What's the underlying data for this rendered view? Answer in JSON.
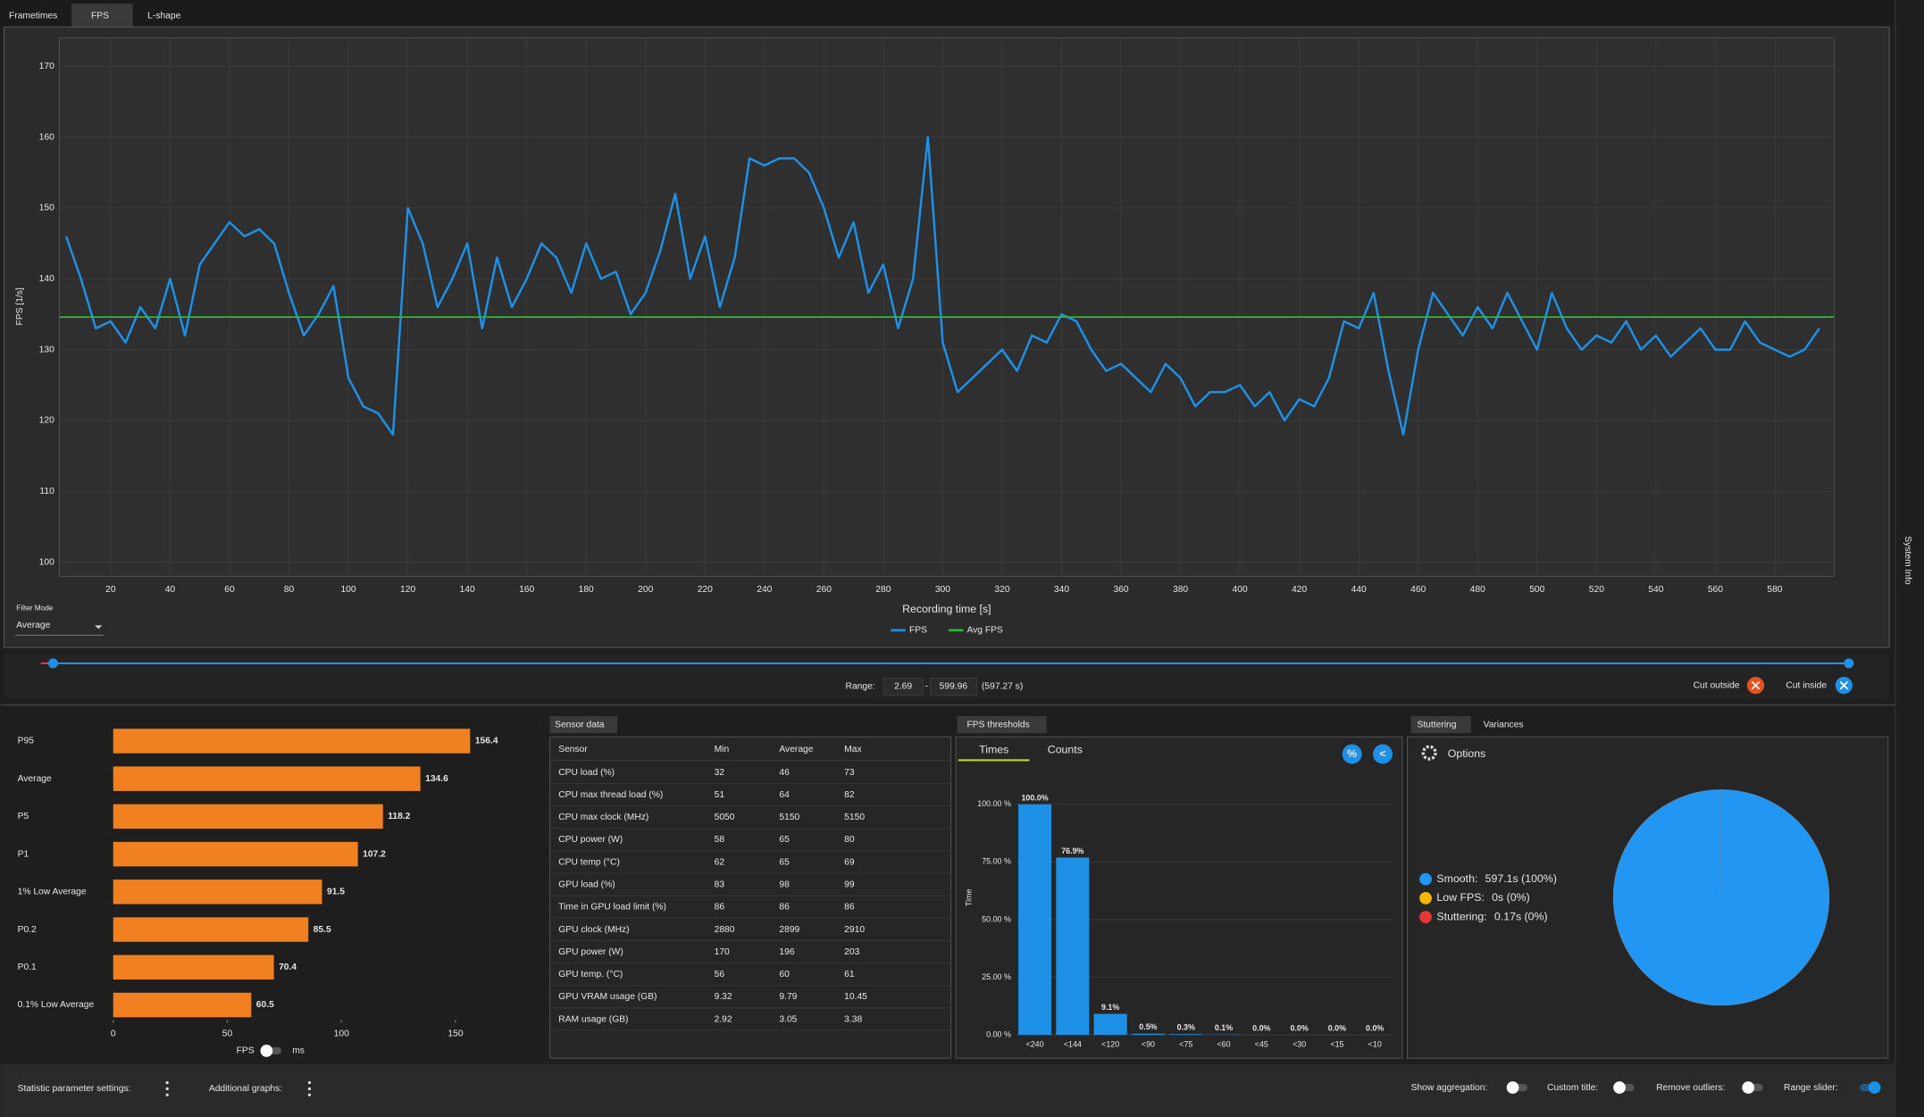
{
  "tabs": [
    "Frametimes",
    "FPS",
    "L-shape"
  ],
  "side_tab": "System Info",
  "filter": {
    "label": "Filter Mode",
    "value": "Average"
  },
  "range": {
    "label": "Range:",
    "start": "2.69",
    "separator": "-",
    "end": "599.96",
    "span": "(597.27 s)"
  },
  "cut": [
    "Cut outside",
    "Cut inside"
  ],
  "stats_toggle": [
    "FPS",
    "ms"
  ],
  "sensor": {
    "tab": "Sensor data",
    "header": [
      "Sensor",
      "Min",
      "Average",
      "Max"
    ],
    "rows": [
      [
        "CPU load (%)",
        32,
        46,
        73
      ],
      [
        "CPU max thread load (%)",
        51,
        64,
        82
      ],
      [
        "CPU max clock (MHz)",
        5050,
        5150,
        5150
      ],
      [
        "CPU power (W)",
        58,
        65,
        80
      ],
      [
        "CPU temp (°C)",
        62,
        65,
        69
      ],
      [
        "GPU load (%)",
        83,
        98,
        99
      ],
      [
        "Time in GPU load limit (%)",
        86,
        86,
        86
      ],
      [
        "GPU clock (MHz)",
        2880,
        2899,
        2910
      ],
      [
        "GPU power (W)",
        170,
        196,
        203
      ],
      [
        "GPU temp. (°C)",
        56,
        60,
        61
      ],
      [
        "GPU VRAM usage (GB)",
        9.32,
        9.79,
        10.45
      ],
      [
        "RAM usage (GB)",
        2.92,
        3.05,
        3.38
      ]
    ]
  },
  "thresholds_panel": {
    "title": "FPS thresholds",
    "tabs": [
      "Times",
      "Counts"
    ]
  },
  "stutter_panel": {
    "tabs": [
      "Stuttering",
      "Variances"
    ],
    "options": "Options"
  },
  "footer": {
    "left": [
      "Statistic parameter settings:",
      "Additional graphs:"
    ],
    "right": [
      "Show aggregation:",
      "Custom title:",
      "Remove outliers:",
      "Range slider:"
    ]
  },
  "chart_data": [
    {
      "type": "line",
      "x_label": "Recording time [s]",
      "y_label": "FPS [1/s]",
      "xlim": [
        2.69,
        599.96
      ],
      "ylim": [
        98,
        174
      ],
      "xticks": [
        20,
        40,
        60,
        80,
        100,
        120,
        140,
        160,
        180,
        200,
        220,
        240,
        260,
        280,
        300,
        320,
        340,
        360,
        380,
        400,
        420,
        440,
        460,
        480,
        500,
        520,
        540,
        560,
        580
      ],
      "yticks": [
        100,
        110,
        120,
        130,
        140,
        150,
        160,
        170
      ],
      "grid": true,
      "series": [
        {
          "name": "FPS",
          "color": "#1e90e6",
          "x": [
            5,
            10,
            15,
            20,
            25,
            30,
            35,
            40,
            45,
            50,
            55,
            60,
            65,
            70,
            75,
            80,
            85,
            90,
            95,
            100,
            105,
            110,
            115,
            120,
            125,
            130,
            135,
            140,
            145,
            150,
            155,
            160,
            165,
            170,
            175,
            180,
            185,
            190,
            195,
            200,
            205,
            210,
            215,
            220,
            225,
            230,
            235,
            240,
            245,
            250,
            255,
            260,
            265,
            270,
            275,
            280,
            285,
            290,
            295,
            300,
            305,
            310,
            315,
            320,
            325,
            330,
            335,
            340,
            345,
            350,
            355,
            360,
            365,
            370,
            375,
            380,
            385,
            390,
            395,
            400,
            405,
            410,
            415,
            420,
            425,
            430,
            435,
            440,
            445,
            450,
            455,
            460,
            465,
            470,
            475,
            480,
            485,
            490,
            495,
            500,
            505,
            510,
            515,
            520,
            525,
            530,
            535,
            540,
            545,
            550,
            555,
            560,
            565,
            570,
            575,
            580,
            585,
            590,
            595
          ],
          "values": [
            146,
            140,
            133,
            134,
            131,
            136,
            133,
            140,
            132,
            142,
            145,
            148,
            146,
            147,
            145,
            138,
            132,
            135,
            139,
            126,
            122,
            121,
            118,
            150,
            145,
            136,
            140,
            145,
            133,
            143,
            136,
            140,
            145,
            143,
            138,
            145,
            140,
            141,
            135,
            138,
            144,
            152,
            140,
            146,
            136,
            143,
            157,
            156,
            157,
            157,
            155,
            150,
            143,
            148,
            138,
            142,
            133,
            140,
            160,
            131,
            124,
            126,
            128,
            130,
            127,
            132,
            131,
            135,
            134,
            130,
            127,
            128,
            126,
            124,
            128,
            126,
            122,
            124,
            124,
            125,
            122,
            124,
            120,
            123,
            122,
            126,
            134,
            133,
            138,
            127,
            118,
            130,
            138,
            135,
            132,
            136,
            133,
            138,
            134,
            130,
            138,
            133,
            130,
            132,
            131,
            134,
            130,
            132,
            129,
            131,
            133,
            130,
            130,
            134,
            131,
            130,
            129,
            130,
            133
          ]
        },
        {
          "name": "Avg FPS",
          "color": "#2eb82e",
          "x": [
            2.69,
            599.96
          ],
          "values": [
            134.6,
            134.6
          ]
        }
      ],
      "legend": "bottom"
    },
    {
      "type": "bar",
      "orientation": "horizontal",
      "categories": [
        "P95",
        "Average",
        "P5",
        "P1",
        "1% Low Average",
        "P0.2",
        "P0.1",
        "0.1% Low Average"
      ],
      "values": [
        156.4,
        134.6,
        118.2,
        107.2,
        91.5,
        85.5,
        70.4,
        60.5
      ],
      "color": "#f08020",
      "xlim": [
        0,
        165
      ],
      "xticks": [
        0,
        50,
        100,
        150
      ]
    },
    {
      "type": "bar",
      "y_label": "Time",
      "categories": [
        "<240",
        "<144",
        "<120",
        "<90",
        "<75",
        "<60",
        "<45",
        "<30",
        "<15",
        "<10"
      ],
      "values": [
        100,
        76.9,
        9.1,
        0.5,
        0.3,
        0.1,
        0,
        0,
        0,
        0
      ],
      "value_labels": [
        "100.0%",
        "76.9%",
        "9.1%",
        "0.5%",
        "0.3%",
        "0.1%",
        "0.0%",
        "0.0%",
        "0.0%",
        "0.0%"
      ],
      "color": "#1e90e6",
      "ylim": [
        0,
        108.5
      ],
      "yticks": [
        {
          "value": 0,
          "label": "0.00 %"
        },
        {
          "value": 25,
          "label": "25.00 %"
        },
        {
          "value": 50,
          "label": "50.00 %"
        },
        {
          "value": 75,
          "label": "75.00 %"
        },
        {
          "value": 100,
          "label": "100.00 %"
        }
      ],
      "grid": true
    },
    {
      "type": "pie",
      "series": [
        {
          "name": "Smooth:",
          "color": "#2196f3",
          "value": 597.1,
          "value_label": "597.1s (100%)"
        },
        {
          "name": "Low FPS:",
          "color": "#f5b800",
          "value": 0,
          "value_label": "0s (0%)"
        },
        {
          "name": "Stuttering:",
          "color": "#e53935",
          "value": 0.17,
          "value_label": "0.17s (0%)"
        }
      ],
      "legend": "left"
    }
  ]
}
